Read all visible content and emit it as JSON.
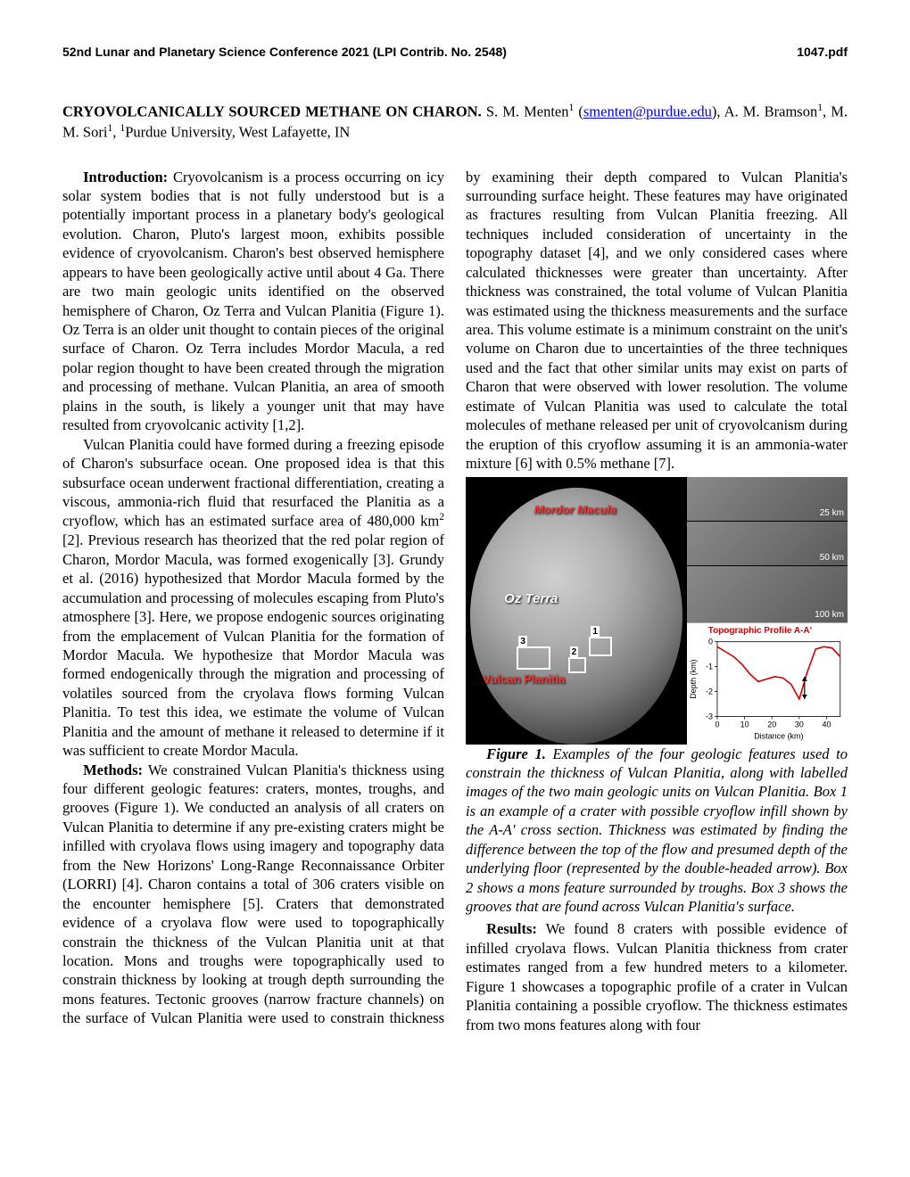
{
  "header": {
    "left": "52nd Lunar and Planetary Science Conference 2021 (LPI Contrib. No. 2548)",
    "right": "1047.pdf"
  },
  "title": "CRYOVOLCANICALLY SOURCED METHANE ON CHARON.",
  "authors_before_email": " S. M. Menten",
  "sup1": "1",
  "authors_paren_open": " (",
  "email": "smenten@purdue.edu",
  "authors_after_email_line1": "), A. M. Bramson",
  "authors_after_line1_cont": ", M. M. Sori",
  "affil_sup": "1",
  "affil": "Purdue University, West Lafayette, IN",
  "body": {
    "intro_head": "Introduction:",
    "intro_p1": " Cryovolcanism is a process occurring on icy solar system bodies that is not fully understood but is a potentially important process in a planetary body's geological evolution. Charon, Pluto's largest moon, exhibits possible evidence of cryovolcanism. Charon's best observed hemisphere appears to have been geologically active until about 4 Ga. There are two main geologic units identified on the observed hemisphere of Charon, Oz Terra and Vulcan Planitia (Figure 1). Oz Terra is an older unit thought to contain pieces of the original surface of Charon. Oz Terra includes Mordor Macula, a red polar region thought to have been created through the migration and processing of methane. Vulcan Planitia, an area of smooth plains in the south, is likely a younger unit that may have resulted from cryovolcanic activity [1,2].",
    "intro_p2": "Vulcan Planitia could have formed during a freezing episode of Charon's subsurface ocean. One proposed idea is that this subsurface ocean underwent fractional differentiation, creating a viscous, ammonia-rich fluid that resurfaced the Planitia as a cryoflow, which has an estimated surface area of 480,000 km",
    "intro_p2_after_sup": " [2]. Previous research has theorized that the red polar region of Charon, Mordor Macula, was formed exogenically [3]. Grundy et al. (2016) hypothesized that Mordor Macula formed by the accumulation and processing of molecules escaping from Pluto's atmosphere [3]. Here, we propose endogenic sources originating from the emplacement of Vulcan Planitia for the formation of Mordor Macula. We hypothesize that Mordor Macula was formed endogenically through the migration and processing of volatiles sourced from the cryolava flows forming Vulcan Planitia.  To test this idea, we estimate the volume of Vulcan Planitia and the amount of methane it released to determine if it was sufficient to create Mordor Macula.",
    "methods_head": "Methods:",
    "methods_p1": " We constrained Vulcan Planitia's thickness using four different geologic features: craters, montes, troughs, and grooves (Figure 1). We conducted an analysis of all craters on Vulcan Planitia to determine if any pre-existing craters might be infilled with cryolava flows using imagery and topography data from the New Horizons' Long-Range Reconnaissance Orbiter (LORRI) [4]. Charon contains a total of 306 craters visible on the encounter hemisphere [5]. Craters that demonstrated evidence of a cryolava flow were used to topographically constrain the thickness of the Vulcan Planitia unit at that location. Mons and troughs were topographically used to constrain thickness by looking at trough depth surrounding the mons features. Tectonic grooves (narrow fracture channels) on the surface of Vulcan Planitia were used to constrain thickness by examining their depth compared to Vulcan Planitia's surrounding surface height. These features may have originated as fractures resulting from Vulcan Planitia freezing. All techniques included consideration of uncertainty in the topography dataset [4], and we only considered cases where calculated thicknesses were greater than uncertainty. After thickness was constrained, the total volume of Vulcan Planitia was estimated using the thickness measurements and the surface area. This volume estimate is a minimum constraint on the unit's volume on Charon due to uncertainties of the three techniques used and the fact that other similar units may exist on parts of Charon that were observed with lower resolution. The volume estimate of Vulcan Planitia was used to calculate the total molecules of methane released per unit of cryovolcanism during the eruption of this cryoflow assuming it is an ammonia-water mixture [6] with 0.5% methane [7].",
    "fig_num": "Figure 1.",
    "fig_caption": " Examples of the four geologic features used to constrain the thickness of Vulcan Planitia, along with labelled images of the two main geologic units on Vulcan Planitia. Box 1 is an example of a crater with possible cryoflow infill shown by the A-A' cross section. Thickness was estimated by finding the difference between the top of the flow and presumed depth of the underlying floor (represented by the double-headed arrow). Box 2 shows a mons feature surrounded by troughs. Box 3 shows the grooves that are found across Vulcan Planitia's surface.",
    "results_head": "Results:",
    "results_p1": " We found 8 craters with possible evidence of infilled cryolava flows. Vulcan Planitia thickness from crater estimates ranged from a few hundred meters to a kilometer. Figure 1 showcases a topographic profile of a crater in Vulcan Planitia containing a possible cryoflow. The thickness estimates from two mons features along with four"
  },
  "figure": {
    "labels": {
      "mordor": "Mordor Macula",
      "ozterra": "Oz Terra",
      "vulcan": "Vulcan Planitia",
      "box1": "1",
      "box2": "2",
      "box3": "3",
      "inset1_scale": "25 km",
      "inset2_scale": "50 km",
      "inset3_scale": "100 km",
      "chart_title": "Topographic Profile A-A'",
      "chart_xlabel": "Distance (km)",
      "chart_ylabel": "Depth (km)"
    },
    "chart": {
      "type": "line",
      "line_color": "#d40000",
      "axis_color": "#000000",
      "background_color": "#ffffff",
      "xlim": [
        0,
        45
      ],
      "ylim": [
        -3,
        0
      ],
      "xticks": [
        0,
        10,
        20,
        30,
        40
      ],
      "yticks": [
        0,
        -1,
        -2,
        -3
      ],
      "x": [
        0,
        3,
        6,
        9,
        12,
        15,
        18,
        21,
        24,
        27,
        30,
        33,
        36,
        39,
        42,
        45
      ],
      "y": [
        -0.2,
        -0.4,
        -0.6,
        -0.9,
        -1.3,
        -1.6,
        -1.5,
        -1.4,
        -1.45,
        -1.7,
        -2.3,
        -1.2,
        -0.3,
        -0.2,
        -0.25,
        -0.6
      ]
    }
  }
}
